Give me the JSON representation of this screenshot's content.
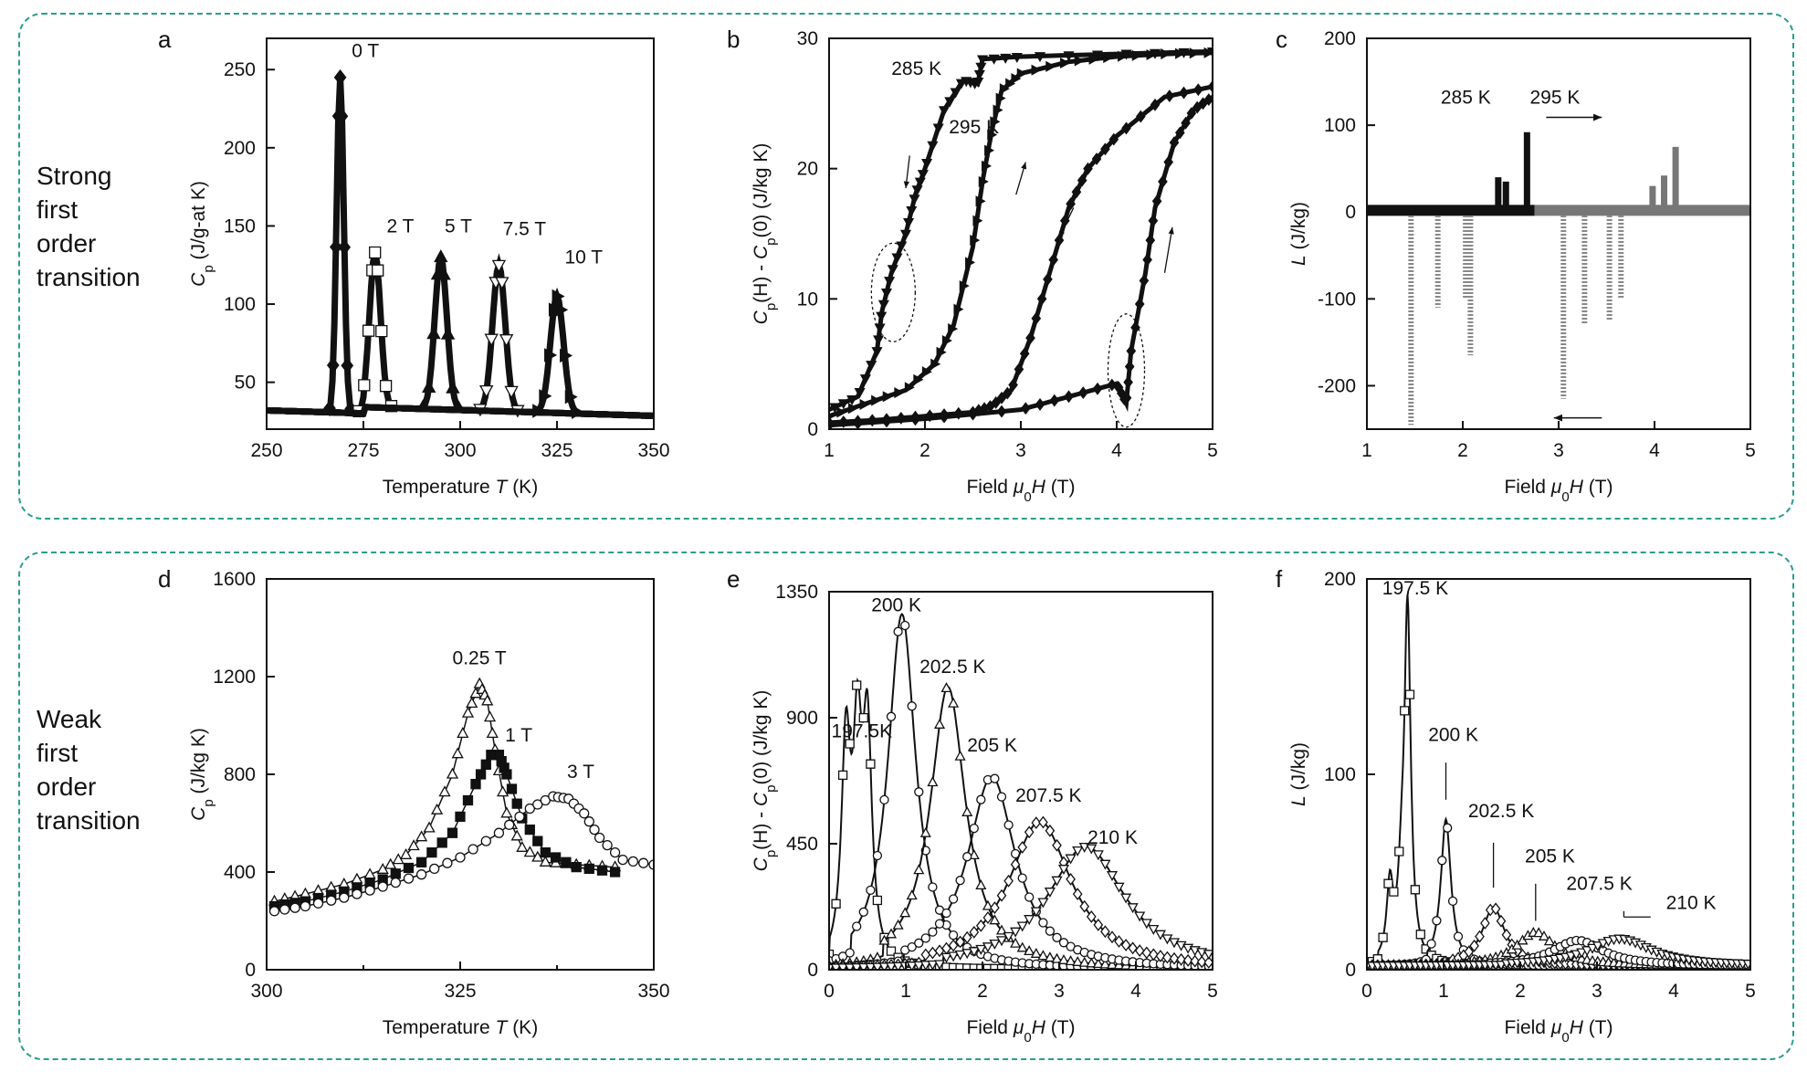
{
  "groups": [
    {
      "label_lines": [
        "Strong",
        "first",
        "order",
        "transition"
      ]
    },
    {
      "label_lines": [
        "Weak",
        "first",
        "order",
        "transition"
      ]
    }
  ],
  "colors": {
    "frame": "#2a9d8f",
    "ink": "#111111",
    "gray": "#777777",
    "light_gray": "#aaaaaa"
  },
  "chart_data": [
    {
      "panel": "a",
      "type": "line",
      "xlabel": "Temperature T (K)",
      "ylabel": "Cp (J/g-at K)",
      "xlabel_parts": [
        "Temperature ",
        "T",
        " (K)"
      ],
      "ylabel_parts": [
        "C",
        "p",
        " (J/g-at K)"
      ],
      "xlim": [
        250,
        350
      ],
      "ylim": [
        20,
        270
      ],
      "xticks": [
        250,
        275,
        300,
        325,
        350
      ],
      "yticks": [
        50,
        100,
        150,
        200,
        250
      ],
      "annotations": [
        {
          "text": "0 T",
          "x": 272,
          "y": 258
        },
        {
          "text": "2 T",
          "x": 281,
          "y": 146
        },
        {
          "text": "5 T",
          "x": 296,
          "y": 146
        },
        {
          "text": "7.5 T",
          "x": 311,
          "y": 144
        },
        {
          "text": "10 T",
          "x": 327,
          "y": 126
        }
      ],
      "series": [
        {
          "marker": "diamond",
          "fill": "black",
          "peak_x": 269,
          "peak_y": 245,
          "width": 1.3
        },
        {
          "marker": "square",
          "fill": "white",
          "peak_x": 278,
          "peak_y": 133,
          "width": 2.0
        },
        {
          "marker": "triangle-up",
          "fill": "black",
          "peak_x": 295,
          "peak_y": 130,
          "width": 2.2
        },
        {
          "marker": "triangle-down",
          "fill": "white",
          "peak_x": 310,
          "peak_y": 125,
          "width": 2.3
        },
        {
          "marker": "triangle-right",
          "fill": "black",
          "peak_x": 325,
          "peak_y": 105,
          "width": 2.4
        }
      ]
    },
    {
      "panel": "b",
      "type": "line",
      "xlabel": "Field μ0H (T)",
      "ylabel": "Cp(H) - Cp(0) (J/kg K)",
      "xlabel_parts": [
        "Field ",
        "μ",
        "0",
        "H",
        " (T)"
      ],
      "ylabel_parts": [
        "C",
        "p",
        "(H) - ",
        "C",
        "p",
        "(0) (J/kg K)"
      ],
      "xlim": [
        1,
        5
      ],
      "ylim": [
        0,
        30
      ],
      "xticks": [
        1,
        2,
        3,
        4,
        5
      ],
      "yticks": [
        0,
        10,
        20,
        30
      ],
      "annotations": [
        {
          "text": "285 K",
          "x": 1.65,
          "y": 27.2
        },
        {
          "text": "295 K",
          "x": 2.25,
          "y": 22.7
        }
      ],
      "series": [
        {
          "name": "285 K field increasing",
          "marker": "triangle-right",
          "fill": "black",
          "x": [
            1,
            1.4,
            1.8,
            2.1,
            2.3,
            2.5,
            2.6,
            2.7,
            2.8,
            3.0,
            3.5,
            4.0,
            4.5,
            5.0
          ],
          "y": [
            1.0,
            2.0,
            3.0,
            5.0,
            8.0,
            14.0,
            19.0,
            23.0,
            26.0,
            27.3,
            28.2,
            28.6,
            28.8,
            28.9
          ]
        },
        {
          "name": "285 K field decreasing",
          "marker": "triangle-down",
          "fill": "black",
          "x": [
            5.0,
            4.0,
            3.0,
            2.6,
            2.55,
            2.4,
            2.2,
            2.0,
            1.9,
            1.8,
            1.65,
            1.55,
            1.5,
            1.3,
            1.0
          ],
          "y": [
            29.0,
            28.8,
            28.6,
            28.4,
            26.5,
            26.8,
            24.5,
            20.0,
            18.0,
            15.0,
            12.0,
            9.0,
            6.0,
            2.5,
            1.5
          ]
        },
        {
          "name": "295 K field increasing",
          "marker": "diamond",
          "fill": "black",
          "x": [
            1.0,
            2.0,
            3.0,
            3.5,
            4.0,
            4.1,
            4.15,
            4.3,
            4.4,
            4.6,
            4.8,
            5.0
          ],
          "y": [
            0.3,
            0.8,
            1.5,
            2.5,
            3.5,
            2.0,
            6.0,
            12.0,
            17.0,
            22.0,
            24.5,
            25.5
          ]
        },
        {
          "name": "295 K field decreasing",
          "marker": "diamond",
          "fill": "black",
          "x": [
            5.0,
            4.5,
            4.0,
            3.7,
            3.5,
            3.3,
            3.1,
            2.9,
            2.7,
            2.5,
            2.0,
            1.5,
            1.0
          ],
          "y": [
            26.3,
            25.5,
            22.5,
            20.0,
            17.0,
            12.0,
            7.0,
            3.0,
            1.8,
            1.3,
            1.0,
            0.7,
            0.5
          ]
        }
      ]
    },
    {
      "panel": "c",
      "type": "line",
      "xlabel": "Field μ0H (T)",
      "ylabel": "L (J/kg)",
      "xlabel_parts": [
        "Field ",
        "μ",
        "0",
        "H",
        " (T)"
      ],
      "ylabel_parts": [
        "L",
        " (J/kg)"
      ],
      "xlim": [
        1,
        5
      ],
      "ylim": [
        -250,
        200
      ],
      "xticks": [
        1,
        2,
        3,
        4,
        5
      ],
      "yticks": [
        -200,
        -100,
        0,
        100,
        200
      ],
      "annotations": [
        {
          "text": "285 K",
          "x": 1.77,
          "y": 125
        },
        {
          "text": "295 K",
          "x": 2.7,
          "y": 125
        }
      ],
      "series": [
        {
          "name": "285 K increasing",
          "color": "black",
          "x_range": [
            1.0,
            2.75
          ],
          "spikes": [
            {
              "x": 2.37,
              "y": 40
            },
            {
              "x": 2.45,
              "y": 35
            },
            {
              "x": 2.67,
              "y": 92
            }
          ]
        },
        {
          "name": "295 K increasing",
          "color": "gray",
          "x_range": [
            2.75,
            5.0
          ],
          "spikes": [
            {
              "x": 3.98,
              "y": 30
            },
            {
              "x": 4.1,
              "y": 42
            },
            {
              "x": 4.22,
              "y": 75
            }
          ]
        },
        {
          "name": "285 K decreasing",
          "color": "light_gray",
          "spikes": [
            {
              "x": 1.46,
              "y": -245
            },
            {
              "x": 1.74,
              "y": -110
            },
            {
              "x": 2.03,
              "y": -100
            },
            {
              "x": 2.08,
              "y": -165
            }
          ]
        },
        {
          "name": "295 K decreasing",
          "color": "light_gray",
          "spikes": [
            {
              "x": 3.05,
              "y": -215
            },
            {
              "x": 3.27,
              "y": -130
            },
            {
              "x": 3.53,
              "y": -125
            },
            {
              "x": 3.65,
              "y": -100
            }
          ]
        }
      ]
    },
    {
      "panel": "d",
      "type": "line",
      "xlabel": "Temperature T (K)",
      "ylabel": "Cp (J/kg K)",
      "xlabel_parts": [
        "Temperature ",
        "T",
        " (K)"
      ],
      "ylabel_parts": [
        "C",
        "p",
        " (J/kg K)"
      ],
      "xlim": [
        300,
        350
      ],
      "ylim": [
        0,
        1600
      ],
      "xticks": [
        300,
        325,
        350
      ],
      "minor_xticks": [
        312.5,
        337.5
      ],
      "yticks": [
        0,
        400,
        800,
        1200,
        1600
      ],
      "annotations": [
        {
          "text": "0.25 T",
          "x": 324,
          "y": 1250
        },
        {
          "text": "1 T",
          "x": 330.8,
          "y": 935
        },
        {
          "text": "3 T",
          "x": 338.8,
          "y": 785
        }
      ],
      "series": [
        {
          "name": "0.25 T",
          "marker": "triangle-up",
          "fill": "white",
          "x": [
            301,
            305,
            310,
            315,
            318,
            321,
            324,
            326,
            327.5,
            328.5,
            329.5,
            331,
            333,
            336,
            340,
            345
          ],
          "y": [
            280,
            310,
            350,
            410,
            470,
            580,
            800,
            1050,
            1170,
            1100,
            900,
            640,
            500,
            440,
            430,
            420
          ]
        },
        {
          "name": "1 T",
          "marker": "square",
          "fill": "black",
          "x": [
            301,
            305,
            310,
            315,
            320,
            324,
            327,
            329,
            330,
            331,
            333,
            336,
            340,
            345
          ],
          "y": [
            260,
            280,
            320,
            370,
            440,
            560,
            760,
            880,
            880,
            800,
            620,
            480,
            420,
            400
          ]
        },
        {
          "name": "3 T",
          "marker": "circle",
          "fill": "white",
          "x": [
            301,
            305,
            310,
            315,
            320,
            325,
            330,
            334,
            337,
            339,
            341,
            343,
            346,
            350
          ],
          "y": [
            240,
            260,
            295,
            340,
            390,
            460,
            560,
            660,
            710,
            700,
            640,
            540,
            450,
            430
          ]
        }
      ]
    },
    {
      "panel": "e",
      "type": "line",
      "xlabel": "Field μ0H (T)",
      "ylabel": "Cp(H) - Cp(0) (J/kg K)",
      "xlabel_parts": [
        "Field ",
        "μ",
        "0",
        "H",
        " (T)"
      ],
      "ylabel_parts": [
        "C",
        "p",
        "(H) - ",
        "C",
        "p",
        "(0) (J/kg K)"
      ],
      "xlim": [
        0,
        5
      ],
      "ylim": [
        0,
        1350
      ],
      "xticks": [
        0,
        1,
        2,
        3,
        4,
        5
      ],
      "yticks": [
        0,
        450,
        900,
        1350
      ],
      "annotations": [
        {
          "text": "197.5K",
          "x": 0.03,
          "y": 830
        },
        {
          "text": "200 K",
          "x": 0.55,
          "y": 1280
        },
        {
          "text": "202.5 K",
          "x": 1.18,
          "y": 1060
        },
        {
          "text": "205 K",
          "x": 1.8,
          "y": 780
        },
        {
          "text": "207.5 K",
          "x": 2.43,
          "y": 600
        },
        {
          "text": "210 K",
          "x": 3.37,
          "y": 450
        }
      ],
      "series": [
        {
          "name": "197.5 K",
          "marker": "square",
          "fill": "white",
          "peaks": [
            [
              0.22,
              760
            ],
            [
              0.37,
              720
            ],
            [
              0.5,
              790
            ]
          ],
          "width": 0.07
        },
        {
          "name": "200 K",
          "marker": "circle",
          "fill": "white",
          "peaks": [
            [
              0.95,
              1270
            ]
          ],
          "width": 0.22
        },
        {
          "name": "202.5 K",
          "marker": "triangle-up",
          "fill": "white",
          "peaks": [
            [
              1.55,
              1010
            ]
          ],
          "width": 0.28
        },
        {
          "name": "205 K",
          "marker": "circle",
          "fill": "white",
          "peaks": [
            [
              2.12,
              690
            ]
          ],
          "width": 0.38
        },
        {
          "name": "207.5 K",
          "marker": "diamond",
          "fill": "white",
          "peaks": [
            [
              2.75,
              530
            ]
          ],
          "width": 0.5
        },
        {
          "name": "210 K",
          "marker": "triangle-down",
          "fill": "white",
          "peaks": [
            [
              3.35,
              440
            ]
          ],
          "width": 0.62
        }
      ]
    },
    {
      "panel": "f",
      "type": "line",
      "xlabel": "Field μ0H (T)",
      "ylabel": "L (J/kg)",
      "xlabel_parts": [
        "Field ",
        "μ",
        "0",
        "H",
        " (T)"
      ],
      "ylabel_parts": [
        "L",
        " (J/kg)"
      ],
      "xlim": [
        0,
        5
      ],
      "ylim": [
        0,
        200
      ],
      "xticks": [
        0,
        1,
        2,
        3,
        4,
        5
      ],
      "yticks": [
        0,
        100,
        200
      ],
      "annotations": [
        {
          "text": "197.5 K",
          "x": 0.2,
          "y": 192
        },
        {
          "text": "200 K",
          "x": 0.8,
          "y": 117
        },
        {
          "text": "202.5 K",
          "x": 1.32,
          "y": 78
        },
        {
          "text": "205 K",
          "x": 2.06,
          "y": 55
        },
        {
          "text": "207.5 K",
          "x": 2.6,
          "y": 41
        },
        {
          "text": "210 K",
          "x": 3.9,
          "y": 31
        }
      ],
      "series": [
        {
          "name": "197.5 K",
          "marker": "square",
          "fill": "white",
          "peaks": [
            [
              0.3,
              38
            ],
            [
              0.45,
              30
            ],
            [
              0.53,
              180
            ]
          ],
          "width": 0.05
        },
        {
          "name": "200 K",
          "marker": "circle",
          "fill": "white",
          "peaks": [
            [
              1.03,
              75
            ]
          ],
          "width": 0.08
        },
        {
          "name": "202.5 K",
          "marker": "diamond",
          "fill": "white",
          "peaks": [
            [
              1.65,
              30
            ]
          ],
          "width": 0.18
        },
        {
          "name": "205 K",
          "marker": "triangle-up",
          "fill": "white",
          "peaks": [
            [
              2.2,
              17
            ]
          ],
          "width": 0.3
        },
        {
          "name": "207.5 K",
          "marker": "circle",
          "fill": "white",
          "peaks": [
            [
              2.75,
              13
            ]
          ],
          "width": 0.4
        },
        {
          "name": "210 K",
          "marker": "triangle-down",
          "fill": "white",
          "peaks": [
            [
              3.3,
              14
            ]
          ],
          "width": 0.5
        }
      ]
    }
  ]
}
